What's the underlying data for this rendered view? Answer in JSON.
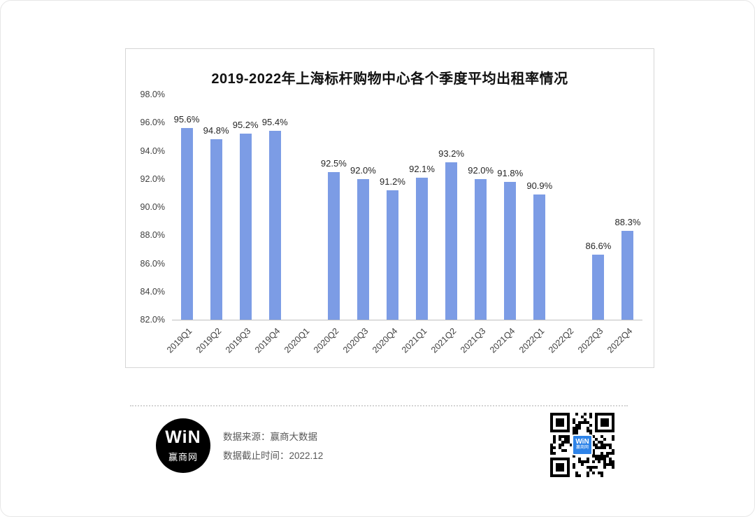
{
  "chart_data": {
    "type": "bar",
    "title": "2019-2022年上海标杆购物中心各个季度平均出租率情况",
    "categories": [
      "2019Q1",
      "2019Q2",
      "2019Q3",
      "2019Q4",
      "2020Q1",
      "2020Q2",
      "2020Q3",
      "2020Q4",
      "2021Q1",
      "2021Q2",
      "2021Q3",
      "2021Q4",
      "2022Q1",
      "2022Q2",
      "2022Q3",
      "2022Q4"
    ],
    "values": [
      95.6,
      94.8,
      95.2,
      95.4,
      null,
      92.5,
      92.0,
      91.2,
      92.1,
      93.2,
      92.0,
      91.8,
      90.9,
      null,
      86.6,
      88.3
    ],
    "value_labels": [
      "95.6%",
      "94.8%",
      "95.2%",
      "95.4%",
      "",
      "92.5%",
      "92.0%",
      "91.2%",
      "92.1%",
      "93.2%",
      "92.0%",
      "91.8%",
      "90.9%",
      "",
      "86.6%",
      "88.3%"
    ],
    "yticks": [
      "98.0%",
      "96.0%",
      "94.0%",
      "92.0%",
      "90.0%",
      "88.0%",
      "86.0%",
      "84.0%",
      "82.0%"
    ],
    "ylim": [
      82,
      98
    ],
    "xlabel": "",
    "ylabel": "",
    "grid": false,
    "legend_position": "none",
    "bar_color": "#7C9CE5",
    "axis_line_color": "#bfbfbf"
  },
  "footer": {
    "logo": {
      "top": "WiN",
      "bottom": "赢商网"
    },
    "source_line": "数据来源：赢商大数据",
    "deadline_line": "数据截止时间：2022.12",
    "qr_center_text": "WiN",
    "qr_center_color": "#2E83E8"
  }
}
